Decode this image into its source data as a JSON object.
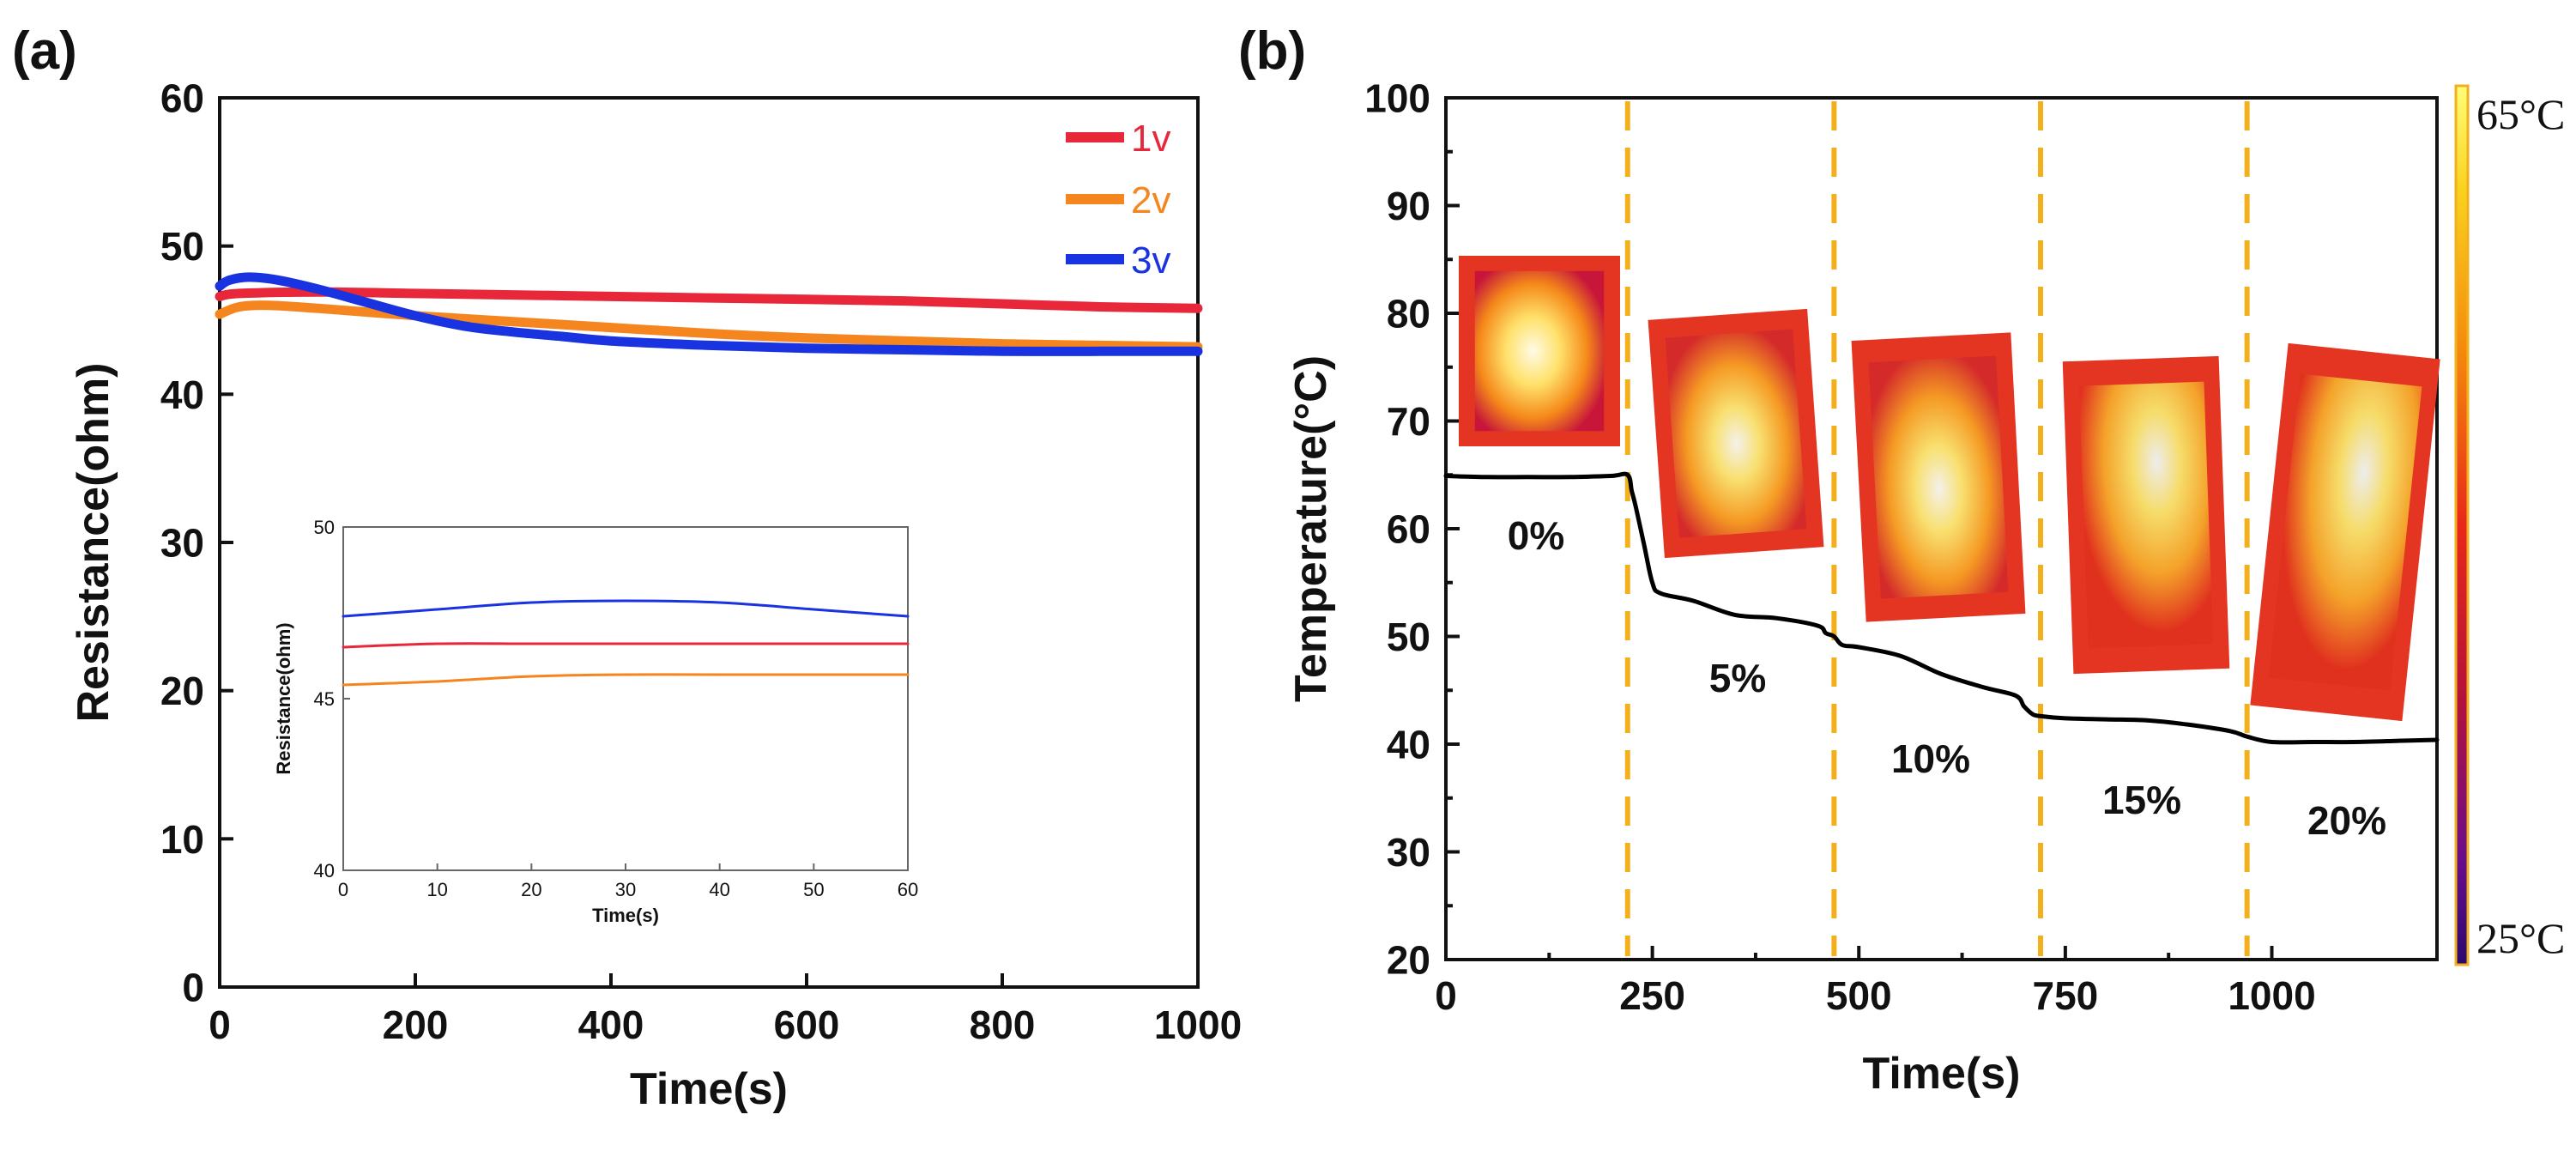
{
  "figure": {
    "panel_a_label": "(a)",
    "panel_b_label": "(b)"
  },
  "chart_data": [
    {
      "id": "a",
      "type": "line",
      "title": "",
      "xlabel": "Time(s)",
      "ylabel": "Resistance(ohm)",
      "xlim": [
        0,
        1000
      ],
      "ylim": [
        0,
        60
      ],
      "xticks": [
        "0",
        "200",
        "400",
        "600",
        "800",
        "1000"
      ],
      "xtick_values": [
        0,
        200,
        400,
        600,
        800,
        1000
      ],
      "yticks": [
        "0",
        "10",
        "20",
        "30",
        "40",
        "50",
        "60"
      ],
      "ytick_values": [
        0,
        10,
        20,
        30,
        40,
        50,
        60
      ],
      "grid": false,
      "legend_position": "top-right",
      "series": [
        {
          "name": "1v",
          "color": "#e8283a",
          "x": [
            0,
            20,
            100,
            200,
            300,
            400,
            500,
            600,
            700,
            800,
            900,
            1000
          ],
          "y": [
            46.6,
            46.8,
            46.9,
            46.8,
            46.7,
            46.6,
            46.5,
            46.4,
            46.3,
            46.1,
            45.9,
            45.8
          ]
        },
        {
          "name": "2v",
          "color": "#f5861f",
          "x": [
            0,
            20,
            50,
            100,
            200,
            300,
            400,
            500,
            600,
            700,
            800,
            900,
            1000
          ],
          "y": [
            45.4,
            45.9,
            46.0,
            45.8,
            45.3,
            44.9,
            44.5,
            44.1,
            43.8,
            43.6,
            43.4,
            43.3,
            43.2
          ]
        },
        {
          "name": "3v",
          "color": "#1a33e0",
          "x": [
            0,
            10,
            30,
            60,
            100,
            150,
            200,
            250,
            300,
            350,
            400,
            500,
            600,
            700,
            800,
            900,
            1000
          ],
          "y": [
            47.3,
            47.7,
            47.9,
            47.7,
            47.1,
            46.2,
            45.3,
            44.6,
            44.2,
            43.9,
            43.6,
            43.3,
            43.1,
            43.0,
            42.9,
            42.9,
            42.9
          ]
        }
      ]
    },
    {
      "id": "a-inset",
      "type": "line",
      "title": "",
      "xlabel": "Time(s)",
      "ylabel": "Resistance(ohm)",
      "xlim": [
        0,
        60
      ],
      "ylim": [
        40,
        50
      ],
      "xticks": [
        "0",
        "10",
        "20",
        "30",
        "40",
        "50",
        "60"
      ],
      "xtick_values": [
        0,
        10,
        20,
        30,
        40,
        50,
        60
      ],
      "yticks": [
        "40",
        "45",
        "50"
      ],
      "ytick_values": [
        40,
        45,
        50
      ],
      "grid": false,
      "series": [
        {
          "name": "3v",
          "color": "#1a33e0",
          "x": [
            0,
            10,
            20,
            30,
            40,
            50,
            60
          ],
          "y": [
            47.4,
            47.6,
            47.8,
            47.85,
            47.8,
            47.6,
            47.4
          ]
        },
        {
          "name": "1v",
          "color": "#e8283a",
          "x": [
            0,
            10,
            20,
            30,
            40,
            50,
            60
          ],
          "y": [
            46.5,
            46.6,
            46.6,
            46.6,
            46.6,
            46.6,
            46.6
          ]
        },
        {
          "name": "2v",
          "color": "#f5861f",
          "x": [
            0,
            10,
            20,
            30,
            40,
            50,
            60
          ],
          "y": [
            45.4,
            45.5,
            45.65,
            45.7,
            45.7,
            45.7,
            45.7
          ]
        }
      ]
    },
    {
      "id": "b",
      "type": "line",
      "title": "",
      "xlabel": "Time(s)",
      "ylabel": "Temperature(°C)",
      "xlim": [
        0,
        1200
      ],
      "ylim": [
        20,
        100
      ],
      "xticks": [
        "0",
        "250",
        "500",
        "750",
        "1000"
      ],
      "xtick_values": [
        0,
        250,
        500,
        750,
        1000
      ],
      "yticks": [
        "20",
        "30",
        "40",
        "50",
        "60",
        "70",
        "80",
        "90",
        "100"
      ],
      "ytick_values": [
        20,
        30,
        40,
        50,
        60,
        70,
        80,
        90,
        100
      ],
      "grid": false,
      "series": [
        {
          "name": "temperature",
          "color": "#000000",
          "x": [
            0,
            50,
            100,
            150,
            200,
            220,
            225,
            230,
            240,
            250,
            260,
            300,
            350,
            400,
            450,
            460,
            470,
            480,
            500,
            550,
            600,
            650,
            690,
            700,
            710,
            720,
            750,
            800,
            850,
            900,
            950,
            970,
            1000,
            1050,
            1100,
            1150,
            1200
          ],
          "y": [
            64.9,
            64.8,
            64.8,
            64.8,
            64.9,
            65.0,
            63.5,
            62.0,
            58.5,
            55.0,
            54.0,
            53.3,
            52.0,
            51.7,
            51.0,
            50.3,
            50.0,
            49.2,
            49.0,
            48.2,
            46.5,
            45.3,
            44.5,
            43.5,
            42.8,
            42.6,
            42.4,
            42.3,
            42.2,
            41.8,
            41.2,
            40.7,
            40.2,
            40.2,
            40.2,
            40.3,
            40.4
          ]
        }
      ],
      "segment_boundaries": [
        220,
        470,
        720,
        970
      ],
      "segment_labels": [
        "0%",
        "5%",
        "10%",
        "15%",
        "20%"
      ],
      "colorbar": {
        "max_label": "65°C",
        "min_label": "25°C"
      }
    }
  ],
  "legend_colors": {
    "1v": "#e8283a",
    "2v": "#f5861f",
    "3v": "#1a33e0"
  },
  "boundary_color": "#f2b01e"
}
